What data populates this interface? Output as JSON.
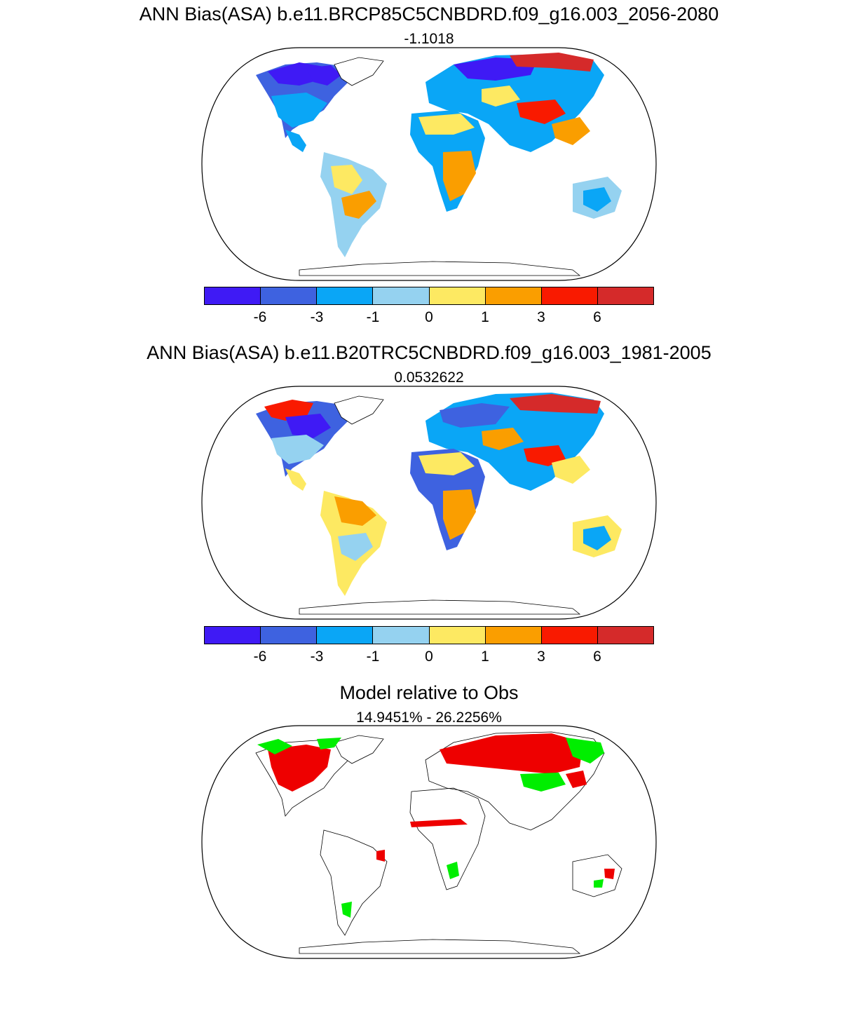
{
  "panels": [
    {
      "title": "ANN Bias(ASA) b.e11.BRCP85C5CNBDRD.f09_g16.003_2056-2080",
      "subtitle": "-1.1018"
    },
    {
      "title": "ANN Bias(ASA) b.e11.B20TRC5CNBDRD.f09_g16.003_1981-2005",
      "subtitle": "0.0532622"
    },
    {
      "title": "Model relative to Obs",
      "subtitle": "14.9451% - 26.2256%"
    }
  ],
  "colorbar": {
    "colors": [
      "#3f1af5",
      "#3e62e0",
      "#0aa6f6",
      "#95d2f0",
      "#fde962",
      "#fa9e00",
      "#f91a00",
      "#d52a2a"
    ],
    "ticks": [
      "-6",
      "-3",
      "-1",
      "0",
      "1",
      "3",
      "6"
    ]
  },
  "legend_colors": {
    "worse": "#ee0000",
    "better": "#00ee00"
  }
}
